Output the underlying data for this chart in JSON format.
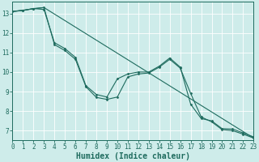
{
  "xlabel": "Humidex (Indice chaleur)",
  "bg_color": "#ceecea",
  "grid_color": "#ffffff",
  "line_color": "#1e6b5e",
  "marker_color": "#1e6b5e",
  "line1_x": [
    0,
    1,
    2,
    3,
    4,
    5,
    6,
    7,
    8,
    9,
    10,
    11,
    12,
    13,
    14,
    15,
    16,
    17,
    18,
    19,
    20,
    21,
    22,
    23
  ],
  "line1_y": [
    13.1,
    13.15,
    13.25,
    13.2,
    11.5,
    11.2,
    10.75,
    9.3,
    8.85,
    8.72,
    9.65,
    9.9,
    10.0,
    10.0,
    10.3,
    10.72,
    10.25,
    8.35,
    7.62,
    7.5,
    7.1,
    7.08,
    6.88,
    6.68
  ],
  "line2_x": [
    0,
    1,
    2,
    3,
    4,
    5,
    6,
    7,
    8,
    9,
    10,
    11,
    12,
    13,
    14,
    15,
    16,
    17,
    18,
    19,
    20,
    21,
    22,
    23
  ],
  "line2_y": [
    13.1,
    13.15,
    13.25,
    13.3,
    11.4,
    11.1,
    10.65,
    9.25,
    8.7,
    8.6,
    8.72,
    9.75,
    9.9,
    9.95,
    10.25,
    10.65,
    10.2,
    8.9,
    7.7,
    7.45,
    7.05,
    7.0,
    6.82,
    6.62
  ],
  "line3_x": [
    0,
    3,
    23
  ],
  "line3_y": [
    13.1,
    13.3,
    6.62
  ],
  "xlim": [
    0,
    23
  ],
  "ylim": [
    6.5,
    13.6
  ],
  "xticks": [
    0,
    1,
    2,
    3,
    4,
    5,
    6,
    7,
    8,
    9,
    10,
    11,
    12,
    13,
    14,
    15,
    16,
    17,
    18,
    19,
    20,
    21,
    22,
    23
  ],
  "yticks": [
    7,
    8,
    9,
    10,
    11,
    12,
    13
  ],
  "tick_label_fontsize": 5.5,
  "xlabel_fontsize": 7.0
}
